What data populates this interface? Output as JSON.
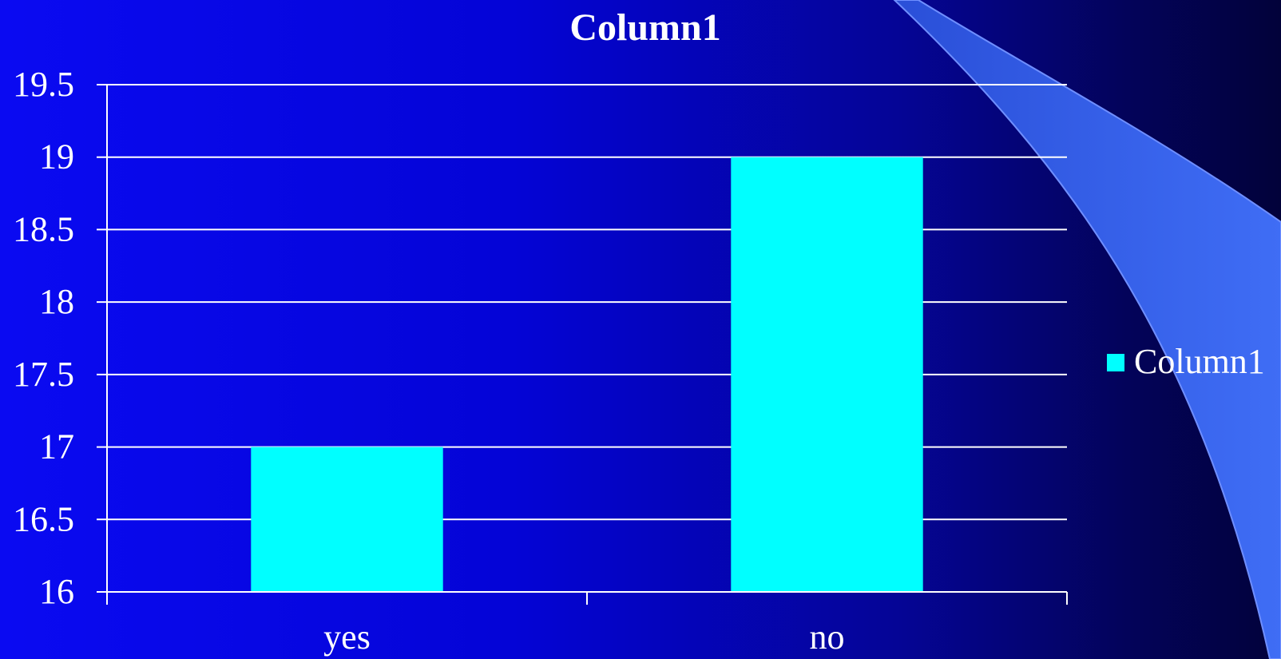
{
  "chart_data": {
    "type": "bar",
    "title": "Column1",
    "categories": [
      "yes",
      "no"
    ],
    "series": [
      {
        "name": "Column1",
        "values": [
          17,
          19
        ]
      }
    ],
    "ylim": [
      16,
      19.5
    ],
    "yticks": [
      "16",
      "16.5",
      "17",
      "17.5",
      "18",
      "18.5",
      "19",
      "19.5"
    ],
    "grid": true,
    "legend": "right"
  },
  "colors": {
    "bar": "#00ffff",
    "grid": "#ffffff",
    "accent_swoosh": "#3a62ee"
  }
}
